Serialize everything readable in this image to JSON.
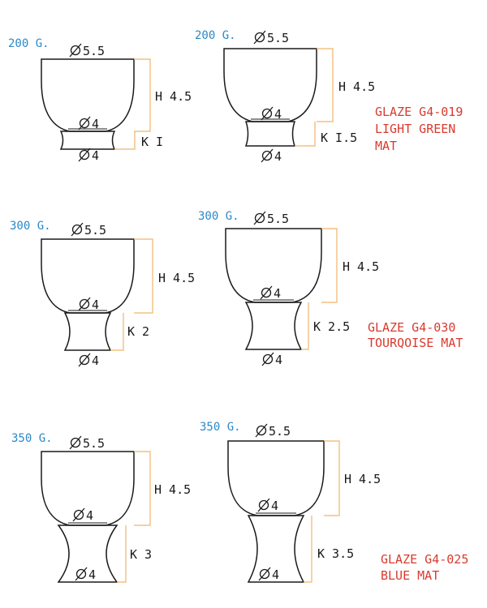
{
  "colors": {
    "outline": "#1a1a1a",
    "dimension_line": "#f0b36a",
    "weight_text": "#2b88c8",
    "glaze_text": "#d93a2e"
  },
  "diameter_symbol": "diameter-icon",
  "cups": [
    {
      "weight": "200 G.",
      "rim_diameter": "5.5",
      "bowl_base_diameter": "4",
      "foot_diameter": "4",
      "bowl_height": "H 4.5",
      "foot_height": "K I"
    },
    {
      "weight": "200 G.",
      "rim_diameter": "5.5",
      "bowl_base_diameter": "4",
      "foot_diameter": "4",
      "bowl_height": "H 4.5",
      "foot_height": "K I.5"
    },
    {
      "weight": "300 G.",
      "rim_diameter": "5.5",
      "bowl_base_diameter": "4",
      "foot_diameter": "4",
      "bowl_height": "H 4.5",
      "foot_height": "K 2"
    },
    {
      "weight": "300 G.",
      "rim_diameter": "5.5",
      "bowl_base_diameter": "4",
      "foot_diameter": "4",
      "bowl_height": "H 4.5",
      "foot_height": "K 2.5"
    },
    {
      "weight": "350 G.",
      "rim_diameter": "5.5",
      "bowl_base_diameter": "4",
      "foot_diameter": "4",
      "bowl_height": "H 4.5",
      "foot_height": "K 3"
    },
    {
      "weight": "350 G.",
      "rim_diameter": "5.5",
      "bowl_base_diameter": "4",
      "foot_diameter": "4",
      "bowl_height": "H 4.5",
      "foot_height": "K 3.5"
    }
  ],
  "glazes": [
    {
      "line1": "GLAZE G4-019",
      "line2": "LIGHT GREEN",
      "line3": "MAT"
    },
    {
      "line1": "GLAZE G4-030",
      "line2": "TOURQOISE MAT"
    },
    {
      "line1": "GLAZE G4-025",
      "line2": "BLUE MAT"
    }
  ]
}
